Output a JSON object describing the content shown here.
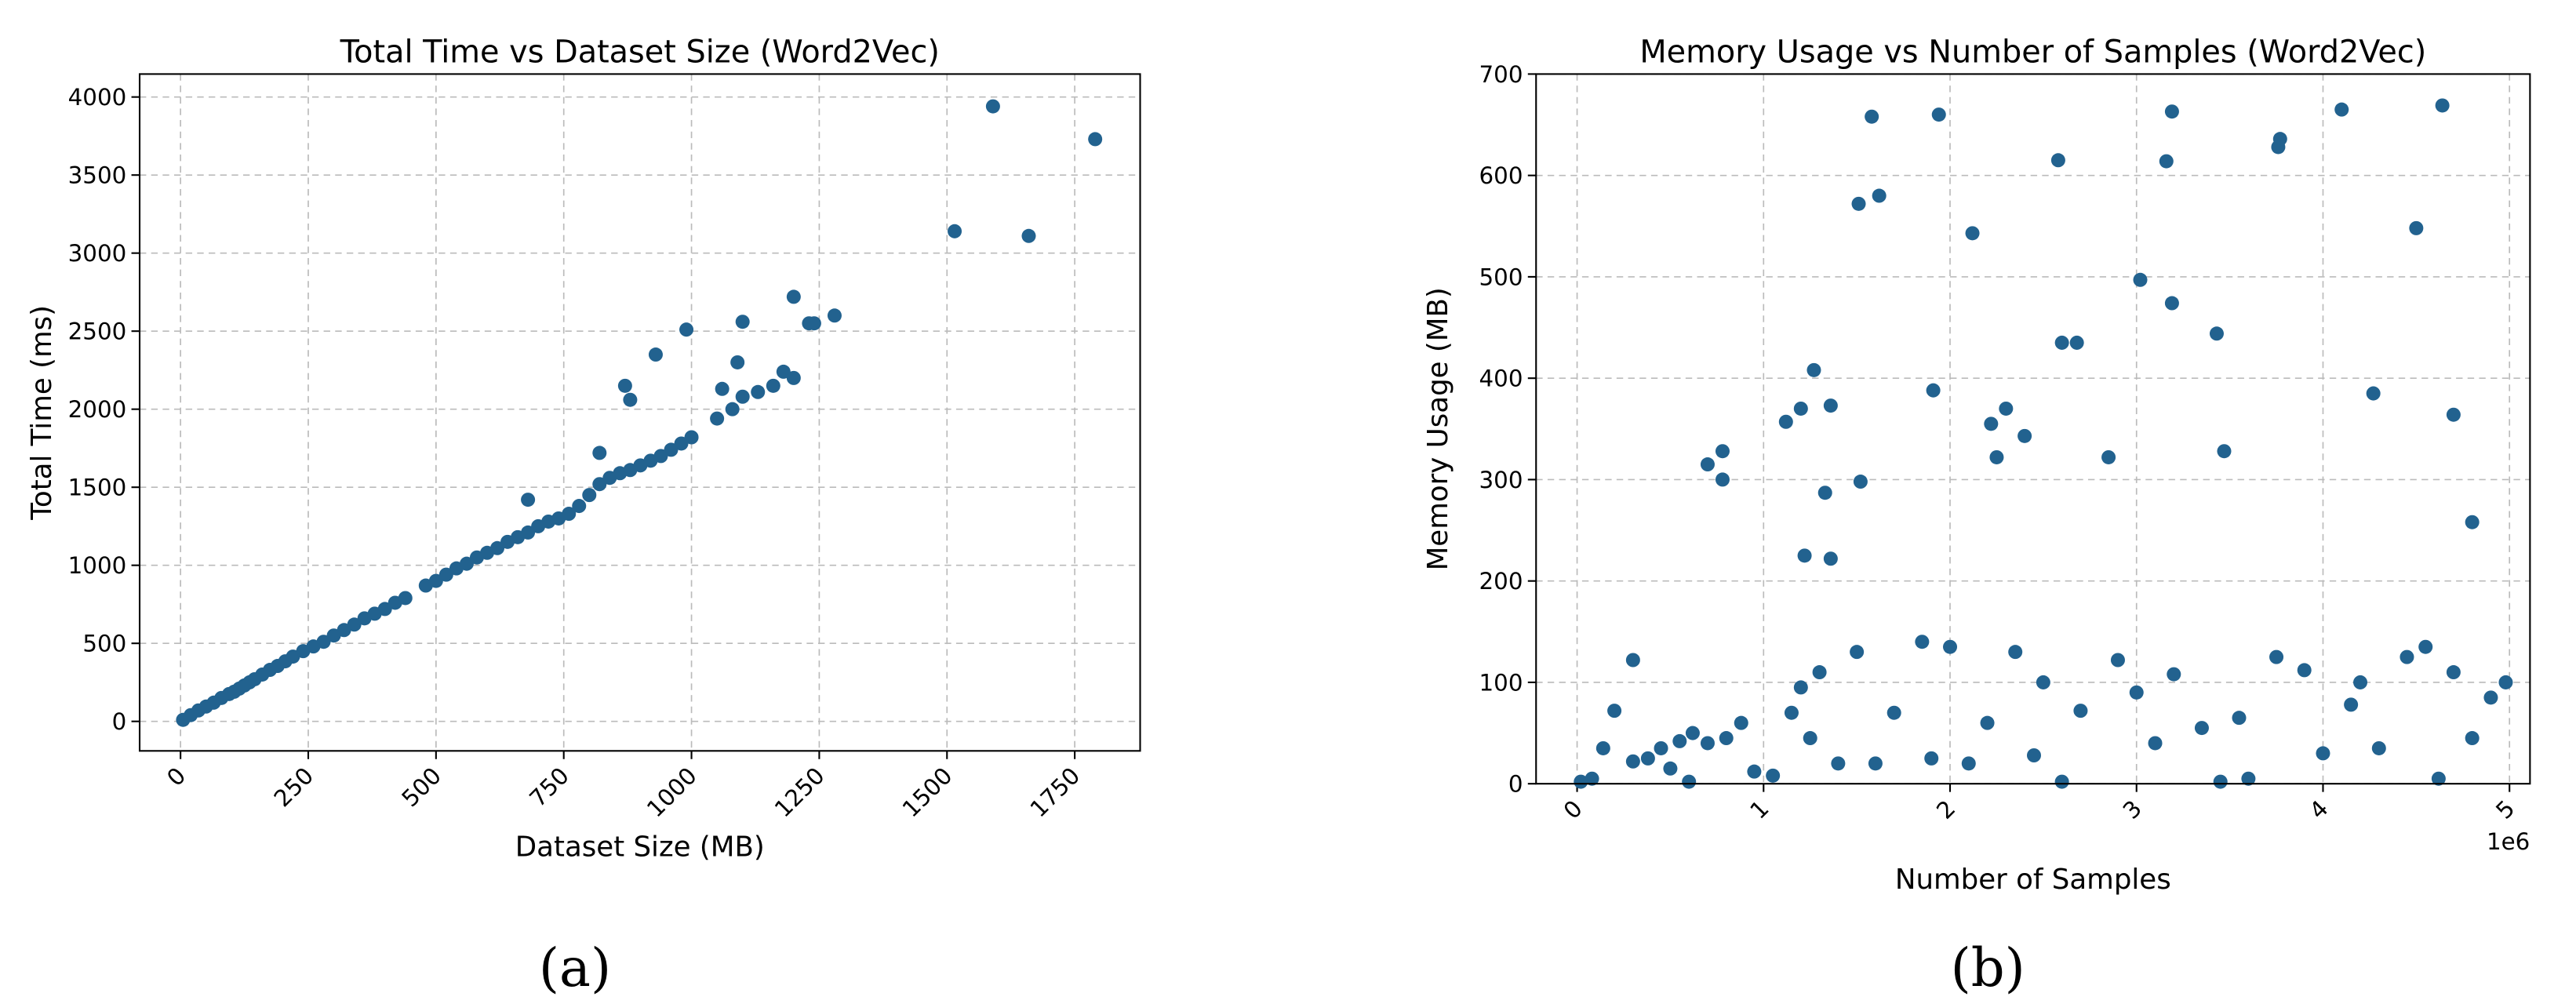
{
  "chart_data": [
    {
      "type": "scatter",
      "title": "Total Time vs Dataset Size (Word2Vec)",
      "xlabel": "Dataset Size (MB)",
      "ylabel": "Total Time (ms)",
      "caption": "(a)",
      "color": "#22628f",
      "grid": true,
      "xlim": [
        -80,
        1878
      ],
      "ylim": [
        -189,
        4147
      ],
      "xticks": [
        0,
        250,
        500,
        750,
        1000,
        1250,
        1500,
        1750
      ],
      "yticks": [
        0,
        500,
        1000,
        1500,
        2000,
        2500,
        3000,
        3500,
        4000
      ],
      "x": [
        5,
        20,
        35,
        50,
        65,
        80,
        95,
        105,
        115,
        125,
        135,
        145,
        160,
        175,
        190,
        205,
        220,
        240,
        260,
        280,
        300,
        320,
        340,
        360,
        380,
        400,
        420,
        440,
        480,
        500,
        520,
        540,
        560,
        580,
        600,
        620,
        640,
        660,
        680,
        700,
        720,
        740,
        760,
        780,
        800,
        820,
        840,
        860,
        880,
        900,
        920,
        940,
        960,
        980,
        1000,
        1050,
        1080,
        1100,
        1130,
        1160,
        1200,
        1240,
        1280,
        870,
        880,
        930,
        990,
        1060,
        1090,
        1100,
        1180,
        1200,
        1230,
        680,
        820,
        1515,
        1590,
        1660,
        1790
      ],
      "y": [
        10,
        40,
        70,
        95,
        120,
        150,
        175,
        190,
        210,
        230,
        250,
        270,
        300,
        330,
        355,
        385,
        415,
        450,
        480,
        510,
        550,
        585,
        620,
        660,
        690,
        720,
        760,
        790,
        870,
        900,
        940,
        980,
        1010,
        1050,
        1080,
        1110,
        1150,
        1180,
        1210,
        1250,
        1280,
        1300,
        1330,
        1380,
        1450,
        1520,
        1560,
        1590,
        1610,
        1640,
        1670,
        1700,
        1740,
        1780,
        1820,
        1940,
        2000,
        2080,
        2110,
        2150,
        2200,
        2550,
        2600,
        2150,
        2060,
        2350,
        2510,
        2130,
        2300,
        2560,
        2240,
        2720,
        2550,
        1420,
        1720,
        3140,
        3940,
        3110,
        3730
      ]
    },
    {
      "type": "scatter",
      "title": "Memory Usage vs Number of Samples (Word2Vec)",
      "xlabel": "Number of Samples",
      "ylabel": "Memory Usage (MB)",
      "caption": "(b)",
      "x_offset_label": "1e6",
      "color": "#22628f",
      "grid": true,
      "xlim": [
        -220000,
        5110000
      ],
      "ylim": [
        0,
        700
      ],
      "xticks": [
        {
          "value": 0,
          "label": "0"
        },
        {
          "value": 1000000,
          "label": "1"
        },
        {
          "value": 2000000,
          "label": "2"
        },
        {
          "value": 3000000,
          "label": "3"
        },
        {
          "value": 4000000,
          "label": "4"
        },
        {
          "value": 5000000,
          "label": "5"
        }
      ],
      "yticks": [
        0,
        100,
        200,
        300,
        400,
        500,
        600,
        700
      ],
      "x": [
        700000,
        780000,
        780000,
        1120000,
        1200000,
        1270000,
        1220000,
        1330000,
        1360000,
        1360000,
        1510000,
        1520000,
        1580000,
        1620000,
        1910000,
        1940000,
        2120000,
        2220000,
        2250000,
        2300000,
        2400000,
        2580000,
        2600000,
        2680000,
        2850000,
        3020000,
        3160000,
        3190000,
        3190000,
        3430000,
        3470000,
        3760000,
        3770000,
        4100000,
        4270000,
        4500000,
        4640000,
        4700000,
        4800000,
        20000,
        80000,
        140000,
        200000,
        300000,
        300000,
        380000,
        450000,
        500000,
        550000,
        620000,
        700000,
        800000,
        880000,
        950000,
        1050000,
        1150000,
        1200000,
        1300000,
        1400000,
        1500000,
        1600000,
        1700000,
        1850000,
        1900000,
        2000000,
        2100000,
        2200000,
        2350000,
        2500000,
        2600000,
        2700000,
        2900000,
        3000000,
        3100000,
        3200000,
        3350000,
        3450000,
        3600000,
        3750000,
        3900000,
        4000000,
        4150000,
        4300000,
        4450000,
        4550000,
        4620000,
        4700000,
        4800000,
        4900000,
        4980000,
        600000,
        1250000,
        2450000,
        3550000,
        4200000
      ],
      "y": [
        315,
        328,
        300,
        357,
        370,
        408,
        225,
        287,
        373,
        222,
        572,
        298,
        658,
        580,
        388,
        660,
        543,
        355,
        322,
        370,
        343,
        615,
        435,
        435,
        322,
        497,
        614,
        663,
        474,
        444,
        328,
        628,
        636,
        665,
        385,
        548,
        669,
        364,
        258,
        2,
        5,
        35,
        72,
        122,
        22,
        25,
        35,
        15,
        42,
        50,
        40,
        45,
        60,
        12,
        8,
        70,
        95,
        110,
        20,
        130,
        20,
        70,
        140,
        25,
        135,
        20,
        60,
        130,
        100,
        2,
        72,
        122,
        90,
        40,
        108,
        55,
        2,
        5,
        125,
        112,
        30,
        78,
        35,
        125,
        135,
        5,
        110,
        45,
        85,
        100,
        2,
        45,
        28,
        65,
        100
      ]
    }
  ]
}
